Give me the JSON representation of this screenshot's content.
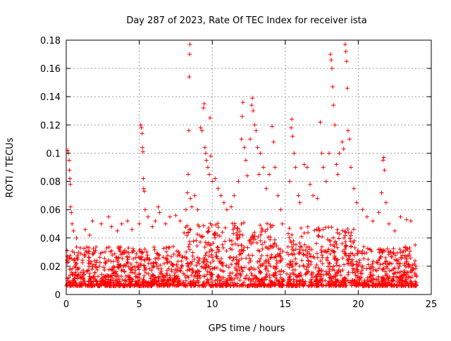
{
  "chart_data": {
    "type": "scatter",
    "title": "Day 287 of 2023, Rate Of TEC Index for receiver ista",
    "xlabel": "GPS time / hours",
    "ylabel": "ROTI / TECUs",
    "xlim": [
      0,
      25
    ],
    "ylim": [
      0,
      0.18
    ],
    "xticks": [
      0,
      5,
      10,
      15,
      20,
      25
    ],
    "xtick_labels": [
      "0",
      "5",
      "10",
      "15",
      "20",
      "25"
    ],
    "yticks": [
      0,
      0.02,
      0.04,
      0.06,
      0.08,
      0.1,
      0.12,
      0.14,
      0.16,
      0.18
    ],
    "ytick_labels": [
      "0",
      "0.02",
      "0.04",
      "0.06",
      "0.08",
      "0.1",
      "0.12",
      "0.14",
      "0.16",
      "0.18"
    ],
    "grid": true,
    "legend": "none",
    "marker": "plus",
    "color": "#ff0000",
    "data_gap_hours": [
      14.9,
      15.1
    ],
    "series": [
      {
        "values": [
          [
            0.1,
            0.102
          ],
          [
            0.15,
            0.1
          ],
          [
            0.2,
            0.095
          ],
          [
            0.22,
            0.088
          ],
          [
            0.25,
            0.082
          ],
          [
            0.28,
            0.078
          ],
          [
            0.3,
            0.062
          ],
          [
            0.35,
            0.058
          ],
          [
            0.4,
            0.05
          ],
          [
            0.5,
            0.045
          ],
          [
            0.7,
            0.04
          ],
          [
            1.3,
            0.046
          ],
          [
            1.6,
            0.042
          ],
          [
            1.8,
            0.052
          ],
          [
            2.4,
            0.05
          ],
          [
            2.9,
            0.055
          ],
          [
            3.1,
            0.048
          ],
          [
            3.5,
            0.045
          ],
          [
            3.8,
            0.05
          ],
          [
            4.2,
            0.052
          ],
          [
            4.5,
            0.046
          ],
          [
            5.0,
            0.05
          ],
          [
            5.1,
            0.12
          ],
          [
            5.15,
            0.118
          ],
          [
            5.2,
            0.114
          ],
          [
            5.22,
            0.104
          ],
          [
            5.25,
            0.101
          ],
          [
            5.28,
            0.082
          ],
          [
            5.3,
            0.075
          ],
          [
            5.35,
            0.073
          ],
          [
            5.4,
            0.06
          ],
          [
            5.6,
            0.055
          ],
          [
            5.9,
            0.048
          ],
          [
            6.1,
            0.052
          ],
          [
            6.3,
            0.062
          ],
          [
            6.4,
            0.058
          ],
          [
            6.8,
            0.05
          ],
          [
            7.1,
            0.055
          ],
          [
            7.5,
            0.056
          ],
          [
            7.8,
            0.052
          ],
          [
            8.2,
            0.06
          ],
          [
            8.3,
            0.072
          ],
          [
            8.35,
            0.085
          ],
          [
            8.4,
            0.116
          ],
          [
            8.42,
            0.154
          ],
          [
            8.45,
            0.17
          ],
          [
            8.47,
            0.177
          ],
          [
            8.5,
            0.068
          ],
          [
            8.6,
            0.062
          ],
          [
            8.8,
            0.07
          ],
          [
            9.0,
            0.06
          ],
          [
            9.2,
            0.118
          ],
          [
            9.3,
            0.116
          ],
          [
            9.4,
            0.132
          ],
          [
            9.45,
            0.135
          ],
          [
            9.5,
            0.104
          ],
          [
            9.55,
            0.1
          ],
          [
            9.6,
            0.095
          ],
          [
            9.7,
            0.09
          ],
          [
            9.8,
            0.085
          ],
          [
            9.85,
            0.125
          ],
          [
            9.9,
            0.098
          ],
          [
            10.0,
            0.08
          ],
          [
            10.2,
            0.082
          ],
          [
            10.4,
            0.075
          ],
          [
            10.6,
            0.07
          ],
          [
            10.8,
            0.065
          ],
          [
            11.0,
            0.06
          ],
          [
            11.3,
            0.062
          ],
          [
            11.5,
            0.07
          ],
          [
            11.8,
            0.08
          ],
          [
            12.0,
            0.11
          ],
          [
            12.05,
            0.126
          ],
          [
            12.1,
            0.136
          ],
          [
            12.2,
            0.104
          ],
          [
            12.3,
            0.095
          ],
          [
            12.4,
            0.084
          ],
          [
            12.6,
            0.11
          ],
          [
            12.7,
            0.134
          ],
          [
            12.75,
            0.139
          ],
          [
            12.8,
            0.13
          ],
          [
            12.9,
            0.12
          ],
          [
            13.0,
            0.116
          ],
          [
            13.1,
            0.104
          ],
          [
            13.2,
            0.085
          ],
          [
            13.3,
            0.1
          ],
          [
            13.5,
            0.09
          ],
          [
            13.7,
            0.075
          ],
          [
            13.9,
            0.085
          ],
          [
            14.1,
            0.119
          ],
          [
            14.2,
            0.108
          ],
          [
            14.3,
            0.09
          ],
          [
            14.5,
            0.07
          ],
          [
            14.7,
            0.06
          ],
          [
            14.8,
            0.05
          ],
          [
            15.3,
            0.08
          ],
          [
            15.4,
            0.118
          ],
          [
            15.45,
            0.124
          ],
          [
            15.5,
            0.112
          ],
          [
            15.6,
            0.1
          ],
          [
            15.7,
            0.09
          ],
          [
            15.9,
            0.07
          ],
          [
            16.0,
            0.065
          ],
          [
            16.3,
            0.092
          ],
          [
            16.5,
            0.09
          ],
          [
            16.7,
            0.078
          ],
          [
            16.9,
            0.07
          ],
          [
            17.2,
            0.068
          ],
          [
            17.4,
            0.122
          ],
          [
            17.5,
            0.1
          ],
          [
            17.6,
            0.09
          ],
          [
            17.8,
            0.08
          ],
          [
            18.0,
            0.1
          ],
          [
            18.1,
            0.17
          ],
          [
            18.15,
            0.166
          ],
          [
            18.2,
            0.16
          ],
          [
            18.25,
            0.147
          ],
          [
            18.3,
            0.134
          ],
          [
            18.4,
            0.12
          ],
          [
            18.5,
            0.092
          ],
          [
            18.6,
            0.085
          ],
          [
            18.7,
            0.1
          ],
          [
            18.9,
            0.108
          ],
          [
            19.0,
            0.103
          ],
          [
            19.1,
            0.177
          ],
          [
            19.15,
            0.172
          ],
          [
            19.2,
            0.165
          ],
          [
            19.25,
            0.146
          ],
          [
            19.3,
            0.116
          ],
          [
            19.4,
            0.11
          ],
          [
            19.5,
            0.09
          ],
          [
            19.7,
            0.075
          ],
          [
            19.9,
            0.065
          ],
          [
            20.3,
            0.06
          ],
          [
            20.6,
            0.055
          ],
          [
            21.0,
            0.052
          ],
          [
            21.4,
            0.058
          ],
          [
            21.6,
            0.072
          ],
          [
            21.7,
            0.095
          ],
          [
            21.75,
            0.097
          ],
          [
            21.8,
            0.088
          ],
          [
            21.9,
            0.065
          ],
          [
            22.1,
            0.05
          ],
          [
            22.5,
            0.045
          ],
          [
            22.9,
            0.055
          ],
          [
            23.3,
            0.053
          ],
          [
            23.6,
            0.052
          ],
          [
            23.9,
            0.035
          ]
        ]
      }
    ]
  }
}
